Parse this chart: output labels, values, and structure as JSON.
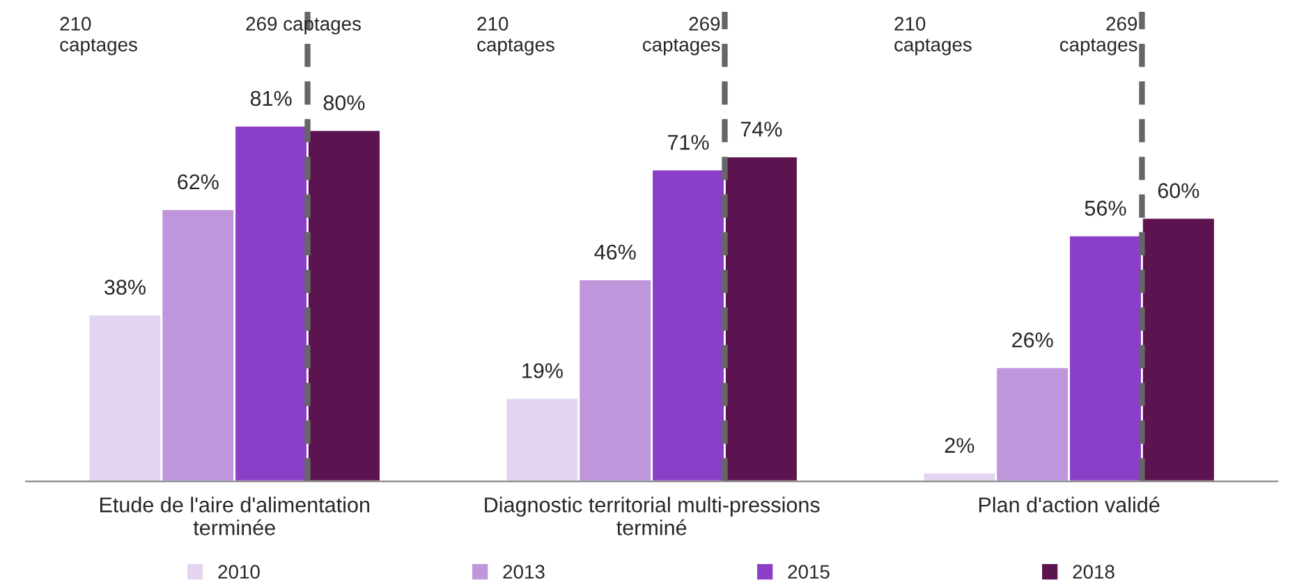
{
  "chart_data": {
    "type": "bar",
    "categories": [
      "Etude de l'aire d'alimentation\nterminée",
      "Diagnostic territorial multi-pressions\nterminé",
      "Plan d'action validé"
    ],
    "series": [
      {
        "name": "2010",
        "color": "#e3d4ef",
        "values": [
          38,
          19,
          2
        ],
        "value_labels": [
          "38%",
          "19%",
          "2%"
        ]
      },
      {
        "name": "2013",
        "color": "#bf96dc",
        "values": [
          62,
          46,
          26
        ],
        "value_labels": [
          "62%",
          "46%",
          "26%"
        ]
      },
      {
        "name": "2015",
        "color": "#8b3fc8",
        "values": [
          81,
          71,
          56
        ],
        "value_labels": [
          "81%",
          "71%",
          "56%"
        ]
      },
      {
        "name": "2018",
        "color": "#5c1450",
        "values": [
          80,
          74,
          60
        ],
        "value_labels": [
          "80%",
          "74%",
          "60%"
        ]
      }
    ],
    "annotations": [
      "210\ncaptages",
      "210\ncaptages",
      "210\ncaptages"
    ],
    "ref_lines": [
      {
        "axis": "x",
        "value": "Etude de l'aire d'alimentation\nterminée",
        "label": "269 captages",
        "line_style": "dashed",
        "color": "#666666"
      },
      {
        "axis": "x",
        "value": "Diagnostic territorial multi-pressions\nterminé",
        "label": "269\ncaptages",
        "line_style": "dashed",
        "color": "#666666"
      },
      {
        "axis": "x",
        "value": "Plan d'action validé",
        "label": "269\ncaptages",
        "line_style": "dashed",
        "color": "#666666"
      }
    ],
    "legend": "bottom",
    "grid": false
  }
}
